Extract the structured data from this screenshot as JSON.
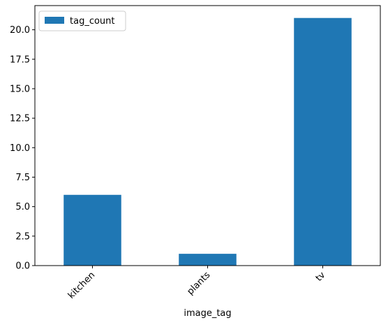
{
  "chart_data": {
    "type": "bar",
    "title": "",
    "xlabel": "image_tag",
    "ylabel": "",
    "categories": [
      "kitchen",
      "plants",
      "tv"
    ],
    "series": [
      {
        "name": "tag_count",
        "values": [
          6,
          1,
          21
        ],
        "color": "#1f77b4"
      }
    ],
    "ylim": [
      0,
      22.05
    ],
    "yticks": [
      0.0,
      2.5,
      5.0,
      7.5,
      10.0,
      12.5,
      15.0,
      17.5,
      20.0
    ],
    "ytick_labels": [
      "0.0",
      "2.5",
      "5.0",
      "7.5",
      "10.0",
      "12.5",
      "15.0",
      "17.5",
      "20.0"
    ],
    "grid": false,
    "legend_position": "top-left",
    "xtick_rotation_deg": 45
  }
}
